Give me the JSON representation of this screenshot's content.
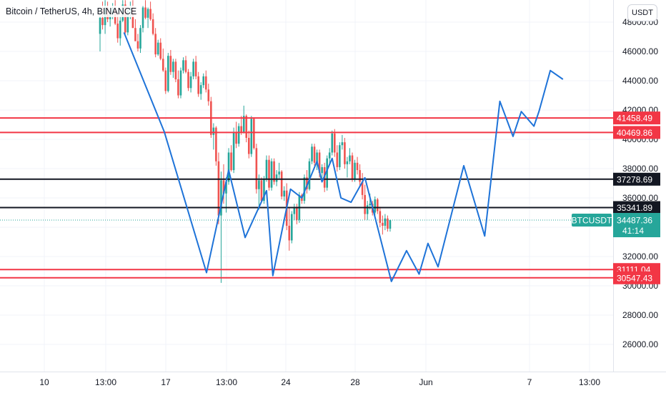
{
  "header": {
    "title": "Bitcoin / TetherUS, 4h, BINANCE",
    "currency": "USDT"
  },
  "chart_data": {
    "type": "line",
    "title": "Bitcoin / TetherUS, 4h, BINANCE",
    "xlabel": "",
    "ylabel": "",
    "ylim": [
      24000,
      49600
    ],
    "y_ticks": [
      48000,
      46000,
      44000,
      42000,
      40000,
      38000,
      36000,
      34000,
      32000,
      30000,
      28000,
      26000
    ],
    "y_tick_labels": [
      "48000.00",
      "46000.00",
      "44000.00",
      "42000.00",
      "40000.00",
      "38000.00",
      "36000.00",
      "34000.00",
      "32000.00",
      "30000.00",
      "28000.00",
      "26000.00"
    ],
    "x_ticks": [
      "10",
      "13:00",
      "17",
      "13:00",
      "24",
      "28",
      "Jun",
      "7",
      "13:00"
    ],
    "grid": true,
    "levels": [
      {
        "value": 41458.49,
        "label": "41458.49",
        "color": "#f23645"
      },
      {
        "value": 40469.86,
        "label": "40469.86",
        "color": "#f23645"
      },
      {
        "value": 37278.69,
        "label": "37278.69",
        "color": "#131722"
      },
      {
        "value": 35341.89,
        "label": "35341.89",
        "color": "#131722"
      },
      {
        "value": 31111.04,
        "label": "31111.04",
        "color": "#f23645"
      },
      {
        "value": 30547.43,
        "label": "30547.43",
        "color": "#f23645"
      }
    ],
    "current_price": {
      "symbol": "BTCUSDT",
      "price": "34487.36",
      "countdown": "41:14",
      "value": 34487.36,
      "color": "#26a69a"
    },
    "candle_colors": {
      "up": "#26a69a",
      "down": "#ef5350"
    },
    "candles_ohlc": [
      [
        47200,
        48900,
        46000,
        48300
      ],
      [
        48300,
        49400,
        47500,
        47800
      ],
      [
        47800,
        49500,
        47200,
        49000
      ],
      [
        49000,
        49400,
        48000,
        48200
      ],
      [
        48200,
        48800,
        47700,
        48500
      ],
      [
        48500,
        49300,
        48200,
        49000
      ],
      [
        49000,
        49500,
        47800,
        47900
      ],
      [
        47900,
        48600,
        46600,
        46900
      ],
      [
        46900,
        48400,
        46400,
        48100
      ],
      [
        48100,
        49500,
        48000,
        49200
      ],
      [
        49200,
        49500,
        47200,
        47300
      ],
      [
        47300,
        48900,
        47100,
        48800
      ],
      [
        48800,
        49400,
        48200,
        49000
      ],
      [
        49000,
        49500,
        47600,
        47600
      ],
      [
        47600,
        48200,
        46700,
        46700
      ],
      [
        46700,
        47200,
        46000,
        46200
      ],
      [
        46200,
        47800,
        45900,
        47600
      ],
      [
        47600,
        49100,
        47300,
        49000
      ],
      [
        49000,
        49500,
        48200,
        48300
      ],
      [
        48300,
        49000,
        47600,
        48900
      ],
      [
        48900,
        49400,
        48100,
        48200
      ],
      [
        48200,
        48600,
        47100,
        47200
      ],
      [
        47200,
        47600,
        45600,
        45800
      ],
      [
        45800,
        46800,
        45700,
        46600
      ],
      [
        46600,
        46900,
        45400,
        45500
      ],
      [
        45500,
        46200,
        44600,
        44700
      ],
      [
        44700,
        44900,
        43100,
        43300
      ],
      [
        43300,
        45900,
        43200,
        45700
      ],
      [
        45700,
        46100,
        44400,
        44600
      ],
      [
        44600,
        45500,
        44200,
        45300
      ],
      [
        45300,
        45500,
        43900,
        44100
      ],
      [
        44100,
        44700,
        42800,
        43000
      ],
      [
        43000,
        44900,
        42800,
        44700
      ],
      [
        44700,
        45600,
        44500,
        45400
      ],
      [
        45400,
        45700,
        44500,
        44600
      ],
      [
        44600,
        44800,
        43300,
        43500
      ],
      [
        43500,
        44600,
        43200,
        44300
      ],
      [
        44300,
        45500,
        44100,
        45300
      ],
      [
        45300,
        45700,
        44100,
        44300
      ],
      [
        44300,
        44600,
        42900,
        43100
      ],
      [
        43100,
        43900,
        42700,
        43700
      ],
      [
        43700,
        44500,
        43500,
        44300
      ],
      [
        44300,
        44700,
        43200,
        43400
      ],
      [
        43400,
        43800,
        42300,
        42600
      ],
      [
        42600,
        42900,
        40100,
        40300
      ],
      [
        40300,
        41100,
        39300,
        40800
      ],
      [
        40800,
        40900,
        38200,
        38500
      ],
      [
        38500,
        39100,
        34200,
        34800
      ],
      [
        34800,
        37800,
        30200,
        37200
      ],
      [
        37200,
        38300,
        35600,
        36300
      ],
      [
        36300,
        37400,
        35000,
        37100
      ],
      [
        37100,
        39400,
        36900,
        39100
      ],
      [
        39100,
        39600,
        37800,
        37900
      ],
      [
        37900,
        40800,
        37700,
        40500
      ],
      [
        40500,
        41200,
        39400,
        39700
      ],
      [
        39700,
        41100,
        39500,
        40900
      ],
      [
        40900,
        41600,
        40300,
        40500
      ],
      [
        40500,
        42300,
        40400,
        41600
      ],
      [
        41600,
        41700,
        39800,
        40100
      ],
      [
        40100,
        40600,
        38700,
        39000
      ],
      [
        39000,
        41600,
        38800,
        41400
      ],
      [
        41400,
        41500,
        39300,
        39400
      ],
      [
        39400,
        39700,
        36300,
        36600
      ],
      [
        36600,
        37600,
        35200,
        37200
      ],
      [
        37200,
        37400,
        35700,
        35800
      ],
      [
        35800,
        37500,
        35600,
        37300
      ],
      [
        37300,
        38900,
        37100,
        38600
      ],
      [
        38600,
        38900,
        36500,
        36700
      ],
      [
        36700,
        38700,
        36500,
        38500
      ],
      [
        38500,
        38700,
        36900,
        37100
      ],
      [
        37100,
        37900,
        36800,
        37600
      ],
      [
        37600,
        38400,
        37300,
        37800
      ],
      [
        37800,
        37900,
        35900,
        36100
      ],
      [
        36100,
        36800,
        35800,
        36500
      ],
      [
        36500,
        37000,
        33800,
        34100
      ],
      [
        34100,
        35300,
        32400,
        33100
      ],
      [
        33100,
        35100,
        32900,
        34900
      ],
      [
        34900,
        35600,
        34500,
        35300
      ],
      [
        35300,
        35600,
        34200,
        34500
      ],
      [
        34500,
        36400,
        34300,
        36200
      ],
      [
        36200,
        36300,
        35600,
        35800
      ],
      [
        35800,
        37600,
        35600,
        37400
      ],
      [
        37400,
        37900,
        36300,
        36600
      ],
      [
        36600,
        38700,
        36500,
        38500
      ],
      [
        38500,
        39700,
        38300,
        39500
      ],
      [
        39500,
        39700,
        38200,
        38400
      ],
      [
        38400,
        39300,
        37900,
        39100
      ],
      [
        39100,
        39300,
        37400,
        37700
      ],
      [
        37700,
        38300,
        37100,
        38100
      ],
      [
        38100,
        38400,
        36400,
        36700
      ],
      [
        36700,
        38900,
        36500,
        38700
      ],
      [
        38700,
        39400,
        38300,
        39100
      ],
      [
        39100,
        40600,
        38900,
        40400
      ],
      [
        40400,
        40700,
        38800,
        39100
      ],
      [
        39100,
        39600,
        37800,
        38100
      ],
      [
        38100,
        39800,
        37900,
        39600
      ],
      [
        39600,
        40300,
        39300,
        39800
      ],
      [
        39800,
        40100,
        38000,
        38300
      ],
      [
        38300,
        38800,
        37400,
        38500
      ],
      [
        38500,
        39400,
        38300,
        38900
      ],
      [
        38900,
        39100,
        37100,
        37300
      ],
      [
        37300,
        38600,
        37100,
        38400
      ],
      [
        38400,
        38800,
        37600,
        37900
      ],
      [
        37900,
        38300,
        36800,
        37100
      ],
      [
        37100,
        37700,
        35900,
        36200
      ],
      [
        36200,
        36900,
        34500,
        34900
      ],
      [
        34900,
        35800,
        34500,
        35500
      ],
      [
        35500,
        36300,
        35200,
        35600
      ],
      [
        35600,
        35800,
        34800,
        35000
      ],
      [
        35000,
        36100,
        34800,
        35900
      ],
      [
        35900,
        36000,
        34900,
        35100
      ],
      [
        35100,
        35400,
        34000,
        34300
      ],
      [
        34300,
        34800,
        33500,
        34100
      ],
      [
        34100,
        34900,
        33800,
        34600
      ],
      [
        34600,
        34800,
        33700,
        33900
      ],
      [
        33900,
        34400,
        33700,
        34500
      ]
    ],
    "series": [
      {
        "x_index": [
          9.5,
          25.5,
          42.2,
          51,
          57.5,
          66,
          68.5,
          75.5,
          80,
          86,
          88,
          92,
          95.5,
          99.5,
          105
        ],
        "values": [
          47300,
          40500,
          30900,
          37900,
          33300,
          36500,
          30700,
          36600,
          36000,
          38500,
          37100,
          38700,
          36000,
          35700,
          37400
        ]
      },
      {
        "x_index": [
          105,
          115.5,
          121.5,
          126.5,
          130,
          134,
          144.2,
          152.5,
          158.5,
          163.7,
          167,
          172,
          174,
          178.5,
          183.5
        ],
        "values": [
          37400,
          30300,
          32400,
          30800,
          32900,
          31300,
          38200,
          33400,
          42600,
          40200,
          41900,
          40900,
          41900,
          44700,
          44100
        ]
      }
    ],
    "projection_color": "#1e73d8"
  }
}
